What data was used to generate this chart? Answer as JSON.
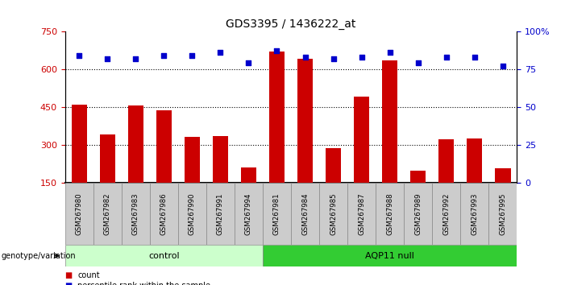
{
  "title": "GDS3395 / 1436222_at",
  "samples": [
    "GSM267980",
    "GSM267982",
    "GSM267983",
    "GSM267986",
    "GSM267990",
    "GSM267991",
    "GSM267994",
    "GSM267981",
    "GSM267984",
    "GSM267985",
    "GSM267987",
    "GSM267988",
    "GSM267989",
    "GSM267992",
    "GSM267993",
    "GSM267995"
  ],
  "counts": [
    460,
    340,
    455,
    435,
    330,
    335,
    210,
    670,
    640,
    285,
    490,
    635,
    195,
    320,
    325,
    205
  ],
  "percentile_ranks": [
    84,
    82,
    82,
    84,
    84,
    86,
    79,
    87,
    83,
    82,
    83,
    86,
    79,
    83,
    83,
    77
  ],
  "control_count": 7,
  "control_label": "control",
  "aqp11_label": "AQP11 null",
  "ymin": 150,
  "ymax": 750,
  "yticks_left": [
    150,
    300,
    450,
    600,
    750
  ],
  "yticks_right_vals": [
    0,
    25,
    50,
    75,
    100
  ],
  "bar_color": "#cc0000",
  "dot_color": "#0000cc",
  "control_bg": "#ccffcc",
  "aqp11_bg": "#33cc33",
  "label_bg": "#cccccc",
  "figwidth": 7.01,
  "figheight": 3.54
}
